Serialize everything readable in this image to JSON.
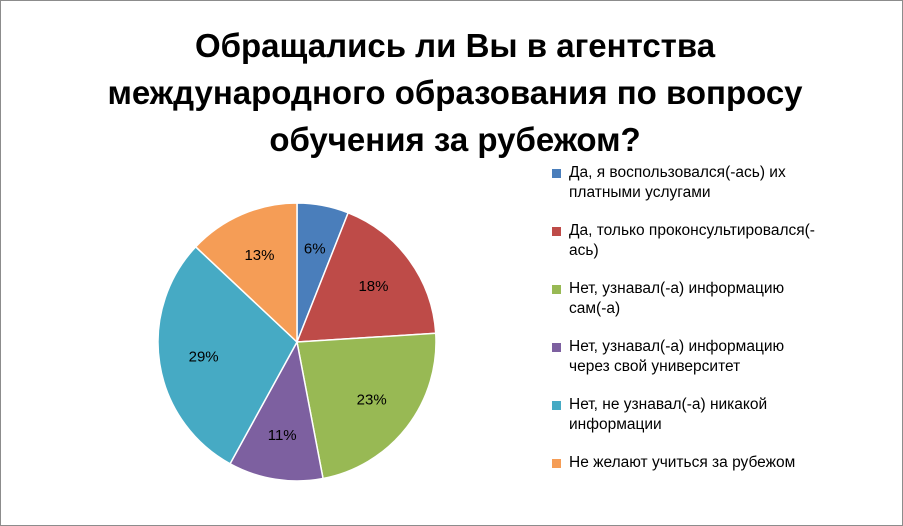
{
  "chart_data": {
    "type": "pie",
    "title_lines": [
      "Обращались ли Вы в агентства",
      "международного образования по вопросу",
      "обучения за рубежом?"
    ],
    "slices": [
      {
        "label_lines": [
          "Да, я воспользовался(-ась) их",
          "платными услугами"
        ],
        "value": 6,
        "value_label": "6%",
        "color": "#4a7ebb"
      },
      {
        "label_lines": [
          "Да, только проконсультировался(-",
          "ась)"
        ],
        "value": 18,
        "value_label": "18%",
        "color": "#be4b48"
      },
      {
        "label_lines": [
          "Нет, узнавал(-а) информацию",
          "сам(-а)"
        ],
        "value": 23,
        "value_label": "23%",
        "color": "#98b954"
      },
      {
        "label_lines": [
          "Нет, узнавал(-а) информацию",
          "через свой университет"
        ],
        "value": 11,
        "value_label": "11%",
        "color": "#7d60a0"
      },
      {
        "label_lines": [
          "Нет, не узнавал(-а) никакой",
          "информации"
        ],
        "value": 29,
        "value_label": "29%",
        "color": "#46aac4"
      },
      {
        "label_lines": [
          "Не желают учиться за рубежом"
        ],
        "value": 13,
        "value_label": "13%",
        "color": "#f59d56"
      }
    ],
    "legend_position": "right"
  }
}
